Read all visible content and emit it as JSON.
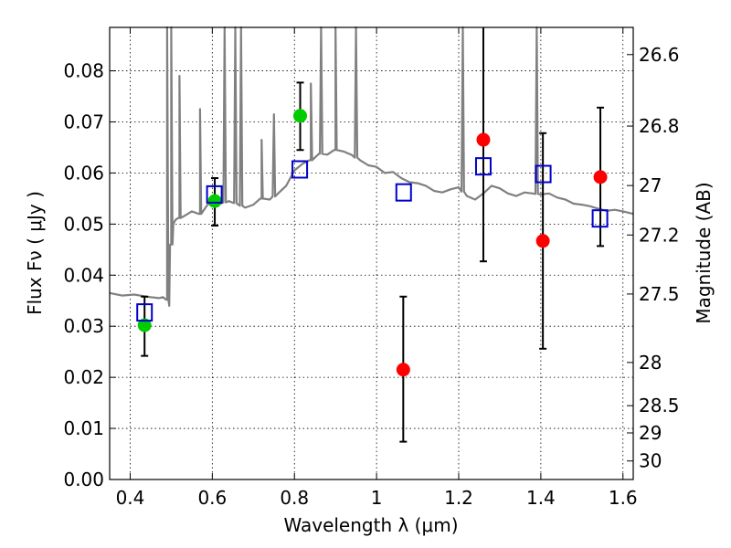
{
  "chart_data": {
    "type": "scatter",
    "xlabel": "Wavelength  λ (μm)",
    "ylabel": "Flux  Fν  ( μJy )",
    "ylabel_right": "Magnitude (AB)",
    "xlim": [
      0.35,
      1.625
    ],
    "ylim": [
      0,
      0.0885
    ],
    "x_ticks": [
      0.4,
      0.6,
      0.8,
      1.0,
      1.2,
      1.4,
      1.6
    ],
    "x_tick_labels": [
      "0.4",
      "0.6",
      "0.8",
      "1",
      "1.2",
      "1.4",
      "1.6"
    ],
    "y_ticks": [
      0,
      0.01,
      0.02,
      0.03,
      0.04,
      0.05,
      0.06,
      0.07,
      0.08
    ],
    "y_tick_labels": [
      "0.00",
      "0.01",
      "0.02",
      "0.03",
      "0.04",
      "0.05",
      "0.06",
      "0.07",
      "0.08"
    ],
    "right_ticks": [
      {
        "mag": 26.6,
        "label": "26.6"
      },
      {
        "mag": 26.8,
        "label": "26.8"
      },
      {
        "mag": 27.0,
        "label": "27"
      },
      {
        "mag": 27.2,
        "label": "27.2"
      },
      {
        "mag": 27.5,
        "label": "27.5"
      },
      {
        "mag": 28.0,
        "label": "28"
      },
      {
        "mag": 28.5,
        "label": "28.5"
      },
      {
        "mag": 29.0,
        "label": "29"
      },
      {
        "mag": 30.0,
        "label": "30"
      }
    ],
    "grid": true,
    "series": [
      {
        "style": "green-circle",
        "color": "#00cc00",
        "points": [
          {
            "x": 0.435,
            "y": 0.0302,
            "err_low": 0.0242,
            "err_high": 0.0358
          },
          {
            "x": 0.606,
            "y": 0.0545,
            "err_low": 0.0497,
            "err_high": 0.059
          },
          {
            "x": 0.814,
            "y": 0.0712,
            "err_low": 0.0645,
            "err_high": 0.0777
          }
        ]
      },
      {
        "style": "red-circle",
        "color": "#ff0000",
        "points": [
          {
            "x": 1.065,
            "y": 0.0215,
            "err_low": 0.0074,
            "err_high": 0.0358
          },
          {
            "x": 1.26,
            "y": 0.0665,
            "err_low": 0.0427,
            "err_high": 0.0885
          },
          {
            "x": 1.405,
            "y": 0.0467,
            "err_low": 0.0256,
            "err_high": 0.0678
          },
          {
            "x": 1.545,
            "y": 0.0592,
            "err_low": 0.0457,
            "err_high": 0.0728
          }
        ]
      },
      {
        "style": "blue-open-square",
        "color": "#0000cc",
        "points": [
          {
            "x": 0.435,
            "y": 0.0327
          },
          {
            "x": 0.605,
            "y": 0.0558
          },
          {
            "x": 0.813,
            "y": 0.0607
          },
          {
            "x": 1.066,
            "y": 0.0562
          },
          {
            "x": 1.26,
            "y": 0.0613
          },
          {
            "x": 1.406,
            "y": 0.0598
          },
          {
            "x": 1.544,
            "y": 0.0511
          }
        ]
      }
    ],
    "model_spectrum": {
      "color": "#808080",
      "x": [
        0.35,
        0.38,
        0.41,
        0.44,
        0.47,
        0.48,
        0.49,
        0.495,
        0.5,
        0.505,
        0.51,
        0.52,
        0.53,
        0.55,
        0.57,
        0.59,
        0.6,
        0.62,
        0.64,
        0.66,
        0.68,
        0.7,
        0.72,
        0.74,
        0.76,
        0.78,
        0.8,
        0.82,
        0.84,
        0.86,
        0.88,
        0.9,
        0.92,
        0.94,
        0.96,
        0.98,
        1.0,
        1.02,
        1.04,
        1.06,
        1.08,
        1.1,
        1.12,
        1.14,
        1.16,
        1.18,
        1.2,
        1.22,
        1.24,
        1.26,
        1.28,
        1.3,
        1.32,
        1.34,
        1.36,
        1.38,
        1.4,
        1.42,
        1.44,
        1.46,
        1.48,
        1.5,
        1.52,
        1.54,
        1.56,
        1.58,
        1.6,
        1.625
      ],
      "y": [
        0.0365,
        0.036,
        0.0362,
        0.0358,
        0.0355,
        0.0357,
        0.0352,
        0.034,
        0.046,
        0.05,
        0.0508,
        0.0512,
        0.0515,
        0.0525,
        0.052,
        0.054,
        0.0535,
        0.054,
        0.0545,
        0.054,
        0.0532,
        0.0538,
        0.055,
        0.0548,
        0.056,
        0.0575,
        0.0605,
        0.0618,
        0.0625,
        0.0638,
        0.0636,
        0.0645,
        0.0642,
        0.0635,
        0.0625,
        0.0615,
        0.0612,
        0.06,
        0.0602,
        0.059,
        0.0582,
        0.058,
        0.0575,
        0.0565,
        0.0562,
        0.0568,
        0.0572,
        0.0555,
        0.0548,
        0.056,
        0.0575,
        0.057,
        0.056,
        0.0555,
        0.0562,
        0.056,
        0.0558,
        0.056,
        0.0552,
        0.0548,
        0.054,
        0.0538,
        0.0535,
        0.053,
        0.0526,
        0.0528,
        0.0525,
        0.052
      ],
      "emission_lines": [
        {
          "x": 0.49,
          "peak": 0.0885
        },
        {
          "x": 0.5,
          "peak": 0.0885
        },
        {
          "x": 0.52,
          "peak": 0.079
        },
        {
          "x": 0.57,
          "peak": 0.0725
        },
        {
          "x": 0.63,
          "peak": 0.0885
        },
        {
          "x": 0.656,
          "peak": 0.0885
        },
        {
          "x": 0.67,
          "peak": 0.0885
        },
        {
          "x": 0.72,
          "peak": 0.0665
        },
        {
          "x": 0.75,
          "peak": 0.0715
        },
        {
          "x": 0.84,
          "peak": 0.0775
        },
        {
          "x": 0.865,
          "peak": 0.0885
        },
        {
          "x": 0.9,
          "peak": 0.0885
        },
        {
          "x": 0.95,
          "peak": 0.0885
        },
        {
          "x": 1.21,
          "peak": 0.0885
        },
        {
          "x": 1.39,
          "peak": 0.0885
        }
      ]
    }
  }
}
